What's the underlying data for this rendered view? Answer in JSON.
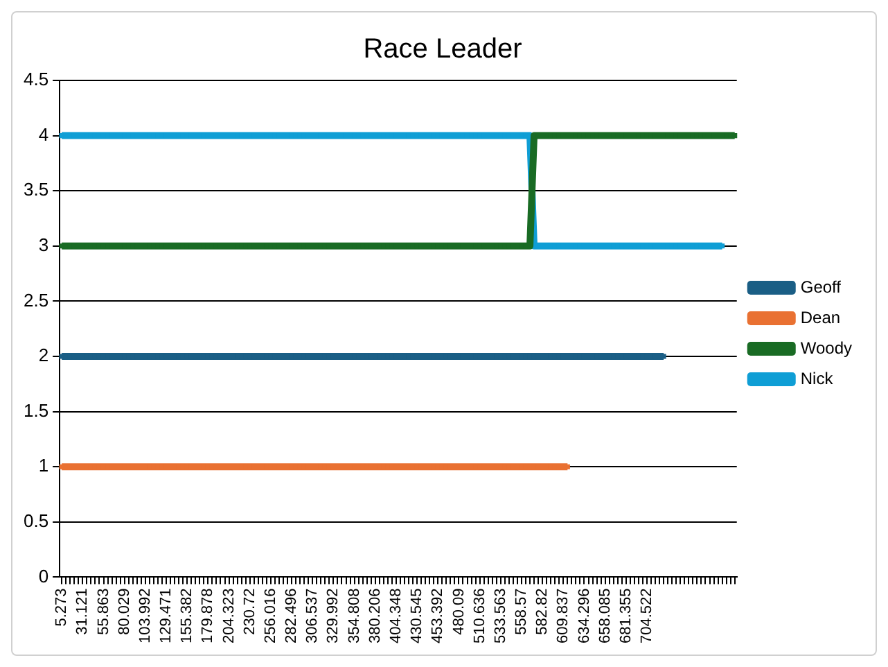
{
  "chart_data": {
    "type": "line",
    "title": "Race Leader",
    "categories": [
      "5.273",
      null,
      null,
      null,
      null,
      "31.121",
      null,
      null,
      null,
      null,
      "55.863",
      null,
      null,
      null,
      null,
      "80.029",
      null,
      null,
      null,
      null,
      "103.992",
      null,
      null,
      null,
      null,
      "129.471",
      null,
      null,
      null,
      null,
      "155.382",
      null,
      null,
      null,
      null,
      "179.878",
      null,
      null,
      null,
      null,
      "204.323",
      null,
      null,
      null,
      null,
      "230.72",
      null,
      null,
      null,
      null,
      "256.016",
      null,
      null,
      null,
      null,
      "282.496",
      null,
      null,
      null,
      null,
      "306.537",
      null,
      null,
      null,
      null,
      "329.992",
      null,
      null,
      null,
      null,
      "354.808",
      null,
      null,
      null,
      null,
      "380.206",
      null,
      null,
      null,
      null,
      "404.348",
      null,
      null,
      null,
      null,
      "430.545",
      null,
      null,
      null,
      null,
      "453.392",
      null,
      null,
      null,
      null,
      "480.09",
      null,
      null,
      null,
      null,
      "510.636",
      null,
      null,
      null,
      null,
      "533.563",
      null,
      null,
      null,
      null,
      "558.57",
      null,
      null,
      null,
      null,
      "582.82",
      null,
      null,
      null,
      null,
      "609.837",
      null,
      null,
      null,
      null,
      "634.296",
      null,
      null,
      null,
      null,
      "658.085",
      null,
      null,
      null,
      null,
      "681.355",
      null,
      null,
      null,
      null,
      "704.522",
      null,
      null,
      null,
      null,
      null,
      null,
      null,
      null,
      null,
      null,
      null,
      null,
      null,
      null,
      null,
      null,
      null,
      null,
      null,
      null,
      null
    ],
    "series": [
      {
        "name": "Geoff",
        "color": "#1a5e85",
        "values": [
          2,
          2,
          2,
          2,
          2,
          2,
          2,
          2,
          2,
          2,
          2,
          2,
          2,
          2,
          2,
          2,
          2,
          2,
          2,
          2,
          2,
          2,
          2,
          2,
          2,
          2,
          2,
          2,
          2,
          2,
          2,
          2,
          2,
          2,
          2,
          2,
          2,
          2,
          2,
          2,
          2,
          2,
          2,
          2,
          2,
          2,
          2,
          2,
          2,
          2,
          2,
          2,
          2,
          2,
          2,
          2,
          2,
          2,
          2,
          2,
          2,
          2,
          2,
          2,
          2,
          2,
          2,
          2,
          2,
          2,
          2,
          2,
          2,
          2,
          2,
          2,
          2,
          2,
          2,
          2,
          2,
          2,
          2,
          2,
          2,
          2,
          2,
          2,
          2,
          2,
          2,
          2,
          2,
          2,
          2,
          2,
          2,
          2,
          2,
          2,
          2,
          2,
          2,
          2,
          2,
          2,
          2,
          2,
          2,
          2,
          2,
          2,
          2,
          2,
          2,
          2,
          2,
          2,
          2,
          2,
          2,
          2,
          2,
          2,
          2,
          2,
          2,
          2,
          2,
          2,
          2,
          2,
          2,
          2,
          2,
          2,
          2,
          2,
          2,
          2,
          2,
          2,
          2,
          2,
          2,
          null,
          null,
          null,
          null,
          null,
          null,
          null,
          null,
          null,
          null,
          null,
          null,
          null,
          null,
          null,
          null,
          null
        ]
      },
      {
        "name": "Dean",
        "color": "#e97132",
        "values": [
          1,
          1,
          1,
          1,
          1,
          1,
          1,
          1,
          1,
          1,
          1,
          1,
          1,
          1,
          1,
          1,
          1,
          1,
          1,
          1,
          1,
          1,
          1,
          1,
          1,
          1,
          1,
          1,
          1,
          1,
          1,
          1,
          1,
          1,
          1,
          1,
          1,
          1,
          1,
          1,
          1,
          1,
          1,
          1,
          1,
          1,
          1,
          1,
          1,
          1,
          1,
          1,
          1,
          1,
          1,
          1,
          1,
          1,
          1,
          1,
          1,
          1,
          1,
          1,
          1,
          1,
          1,
          1,
          1,
          1,
          1,
          1,
          1,
          1,
          1,
          1,
          1,
          1,
          1,
          1,
          1,
          1,
          1,
          1,
          1,
          1,
          1,
          1,
          1,
          1,
          1,
          1,
          1,
          1,
          1,
          1,
          1,
          1,
          1,
          1,
          1,
          1,
          1,
          1,
          1,
          1,
          1,
          1,
          1,
          1,
          1,
          1,
          1,
          1,
          1,
          1,
          1,
          1,
          1,
          1,
          1,
          1,
          null,
          null,
          null,
          null,
          null,
          null,
          null,
          null,
          null,
          null,
          null,
          null,
          null,
          null,
          null,
          null,
          null,
          null,
          null,
          null,
          null,
          null,
          null,
          null,
          null,
          null,
          null,
          null,
          null,
          null,
          null,
          null,
          null,
          null,
          null,
          null,
          null,
          null,
          null,
          null
        ]
      },
      {
        "name": "Woody",
        "color": "#196b24",
        "values": [
          3,
          3,
          3,
          3,
          3,
          3,
          3,
          3,
          3,
          3,
          3,
          3,
          3,
          3,
          3,
          3,
          3,
          3,
          3,
          3,
          3,
          3,
          3,
          3,
          3,
          3,
          3,
          3,
          3,
          3,
          3,
          3,
          3,
          3,
          3,
          3,
          3,
          3,
          3,
          3,
          3,
          3,
          3,
          3,
          3,
          3,
          3,
          3,
          3,
          3,
          3,
          3,
          3,
          3,
          3,
          3,
          3,
          3,
          3,
          3,
          3,
          3,
          3,
          3,
          3,
          3,
          3,
          3,
          3,
          3,
          3,
          3,
          3,
          3,
          3,
          3,
          3,
          3,
          3,
          3,
          3,
          3,
          3,
          3,
          3,
          3,
          3,
          3,
          3,
          3,
          3,
          3,
          3,
          3,
          3,
          3,
          3,
          3,
          3,
          3,
          3,
          3,
          3,
          3,
          3,
          3,
          3,
          3,
          3,
          3,
          3,
          3,
          3,
          4,
          4,
          4,
          4,
          4,
          4,
          4,
          4,
          4,
          4,
          4,
          4,
          4,
          4,
          4,
          4,
          4,
          4,
          4,
          4,
          4,
          4,
          4,
          4,
          4,
          4,
          4,
          4,
          4,
          4,
          4,
          4,
          4,
          4,
          4,
          4,
          4,
          4,
          4,
          4,
          4,
          4,
          4,
          4,
          4,
          4,
          4,
          4,
          4
        ]
      },
      {
        "name": "Nick",
        "color": "#0f9ed5",
        "values": [
          4,
          4,
          4,
          4,
          4,
          4,
          4,
          4,
          4,
          4,
          4,
          4,
          4,
          4,
          4,
          4,
          4,
          4,
          4,
          4,
          4,
          4,
          4,
          4,
          4,
          4,
          4,
          4,
          4,
          4,
          4,
          4,
          4,
          4,
          4,
          4,
          4,
          4,
          4,
          4,
          4,
          4,
          4,
          4,
          4,
          4,
          4,
          4,
          4,
          4,
          4,
          4,
          4,
          4,
          4,
          4,
          4,
          4,
          4,
          4,
          4,
          4,
          4,
          4,
          4,
          4,
          4,
          4,
          4,
          4,
          4,
          4,
          4,
          4,
          4,
          4,
          4,
          4,
          4,
          4,
          4,
          4,
          4,
          4,
          4,
          4,
          4,
          4,
          4,
          4,
          4,
          4,
          4,
          4,
          4,
          4,
          4,
          4,
          4,
          4,
          4,
          4,
          4,
          4,
          4,
          4,
          4,
          4,
          4,
          4,
          4,
          4,
          4,
          3,
          3,
          3,
          3,
          3,
          3,
          3,
          3,
          3,
          3,
          3,
          3,
          3,
          3,
          3,
          3,
          3,
          3,
          3,
          3,
          3,
          3,
          3,
          3,
          3,
          3,
          3,
          3,
          3,
          3,
          3,
          3,
          3,
          3,
          3,
          3,
          3,
          3,
          3,
          3,
          3,
          3,
          3,
          3,
          3,
          3,
          null,
          null,
          null
        ]
      }
    ],
    "ylim": [
      0,
      4.5
    ],
    "yticks": [
      0,
      0.5,
      1,
      1.5,
      2,
      2.5,
      3,
      3.5,
      4,
      4.5
    ],
    "grid": "y",
    "legend": "right",
    "marker": "square",
    "line_style": "solid"
  }
}
